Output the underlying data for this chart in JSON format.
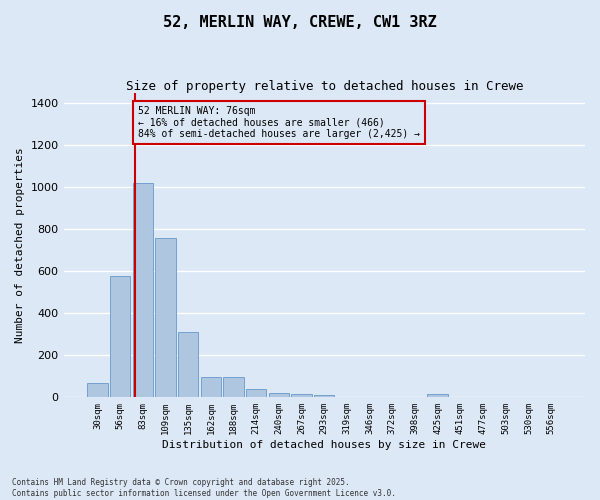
{
  "title_line1": "52, MERLIN WAY, CREWE, CW1 3RZ",
  "title_line2": "Size of property relative to detached houses in Crewe",
  "xlabel": "Distribution of detached houses by size in Crewe",
  "ylabel": "Number of detached properties",
  "categories": [
    "30sqm",
    "56sqm",
    "83sqm",
    "109sqm",
    "135sqm",
    "162sqm",
    "188sqm",
    "214sqm",
    "240sqm",
    "267sqm",
    "293sqm",
    "319sqm",
    "346sqm",
    "372sqm",
    "398sqm",
    "425sqm",
    "451sqm",
    "477sqm",
    "503sqm",
    "530sqm",
    "556sqm"
  ],
  "values": [
    70,
    580,
    1020,
    760,
    310,
    95,
    95,
    40,
    22,
    17,
    10,
    0,
    0,
    0,
    0,
    14,
    0,
    0,
    0,
    0,
    0
  ],
  "bar_color": "#aec6e0",
  "bar_edge_color": "#6699cc",
  "vline_x": 1.65,
  "vline_color": "#cc0000",
  "annotation_text": "52 MERLIN WAY: 76sqm\n← 16% of detached houses are smaller (466)\n84% of semi-detached houses are larger (2,425) →",
  "annotation_box_color": "#cc0000",
  "background_color": "#dce8f5",
  "grid_color": "#ffffff",
  "ylim": [
    0,
    1450
  ],
  "yticks": [
    0,
    200,
    400,
    600,
    800,
    1000,
    1200,
    1400
  ],
  "footer_line1": "Contains HM Land Registry data © Crown copyright and database right 2025.",
  "footer_line2": "Contains public sector information licensed under the Open Government Licence v3.0."
}
